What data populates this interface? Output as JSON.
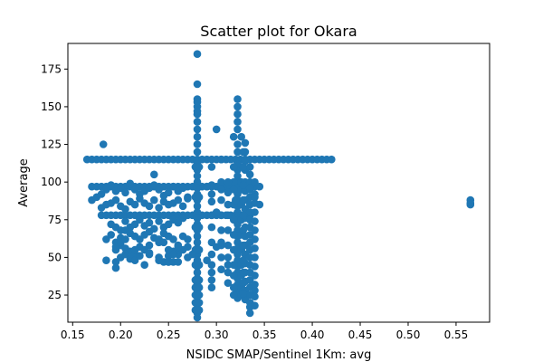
{
  "chart_data": {
    "type": "scatter",
    "title": "Scatter plot for Okara",
    "xlabel": "NSIDC SMAP/Sentinel 1Km: avg",
    "ylabel": "Average",
    "xlim": [
      0.145,
      0.585
    ],
    "ylim": [
      7,
      192
    ],
    "xticks": [
      0.15,
      0.2,
      0.25,
      0.3,
      0.35,
      0.4,
      0.45,
      0.5,
      0.55
    ],
    "xtick_labels": [
      "0.15",
      "0.20",
      "0.25",
      "0.30",
      "0.35",
      "0.40",
      "0.45",
      "0.50",
      "0.55"
    ],
    "yticks": [
      25,
      50,
      75,
      100,
      125,
      150,
      175
    ],
    "ytick_labels": [
      "25",
      "50",
      "75",
      "100",
      "125",
      "150",
      "175"
    ],
    "grid": false,
    "marker_color": "#1f77b4",
    "x": [
      0.165,
      0.17,
      0.175,
      0.18,
      0.185,
      0.19,
      0.195,
      0.2,
      0.205,
      0.21,
      0.215,
      0.22,
      0.225,
      0.23,
      0.235,
      0.24,
      0.245,
      0.25,
      0.255,
      0.26,
      0.265,
      0.27,
      0.275,
      0.28,
      0.285,
      0.29,
      0.295,
      0.3,
      0.305,
      0.31,
      0.315,
      0.32,
      0.325,
      0.33,
      0.335,
      0.34,
      0.345,
      0.35,
      0.355,
      0.36,
      0.365,
      0.37,
      0.375,
      0.38,
      0.385,
      0.39,
      0.395,
      0.4,
      0.405,
      0.41,
      0.415,
      0.42,
      0.17,
      0.175,
      0.18,
      0.185,
      0.19,
      0.195,
      0.2,
      0.205,
      0.21,
      0.215,
      0.22,
      0.225,
      0.23,
      0.235,
      0.24,
      0.245,
      0.25,
      0.255,
      0.26,
      0.265,
      0.27,
      0.275,
      0.28,
      0.285,
      0.29,
      0.295,
      0.3,
      0.305,
      0.31,
      0.315,
      0.32,
      0.325,
      0.33,
      0.335,
      0.34,
      0.345,
      0.18,
      0.185,
      0.19,
      0.195,
      0.2,
      0.205,
      0.21,
      0.215,
      0.22,
      0.225,
      0.23,
      0.235,
      0.24,
      0.245,
      0.25,
      0.255,
      0.26,
      0.265,
      0.27,
      0.275,
      0.28,
      0.285,
      0.29,
      0.295,
      0.3,
      0.305,
      0.31,
      0.315,
      0.32,
      0.325,
      0.33,
      0.335,
      0.28,
      0.28,
      0.28,
      0.28,
      0.28,
      0.28,
      0.28,
      0.28,
      0.28,
      0.28,
      0.28,
      0.28,
      0.28,
      0.28,
      0.28,
      0.28,
      0.28,
      0.28,
      0.28,
      0.28,
      0.28,
      0.28,
      0.28,
      0.28,
      0.28,
      0.28,
      0.28,
      0.28,
      0.28,
      0.28,
      0.28,
      0.28,
      0.28,
      0.28,
      0.28,
      0.28,
      0.28,
      0.28,
      0.28,
      0.278,
      0.282,
      0.278,
      0.282,
      0.278,
      0.282,
      0.278,
      0.282,
      0.278,
      0.282,
      0.278,
      0.282,
      0.278,
      0.282,
      0.278,
      0.282,
      0.278,
      0.282,
      0.278,
      0.282,
      0.322,
      0.322,
      0.322,
      0.322,
      0.322,
      0.322,
      0.322,
      0.322,
      0.322,
      0.322,
      0.322,
      0.322,
      0.322,
      0.322,
      0.322,
      0.322,
      0.322,
      0.322,
      0.322,
      0.322,
      0.322,
      0.322,
      0.322,
      0.322,
      0.322,
      0.322,
      0.322,
      0.322,
      0.322,
      0.322,
      0.322,
      0.318,
      0.326,
      0.318,
      0.326,
      0.318,
      0.326,
      0.318,
      0.326,
      0.318,
      0.326,
      0.318,
      0.326,
      0.318,
      0.326,
      0.318,
      0.326,
      0.318,
      0.326,
      0.318,
      0.326,
      0.318,
      0.326,
      0.318,
      0.326,
      0.33,
      0.33,
      0.33,
      0.33,
      0.33,
      0.33,
      0.33,
      0.33,
      0.33,
      0.33,
      0.33,
      0.33,
      0.33,
      0.33,
      0.33,
      0.33,
      0.33,
      0.33,
      0.33,
      0.33,
      0.335,
      0.335,
      0.335,
      0.335,
      0.335,
      0.335,
      0.335,
      0.335,
      0.335,
      0.335,
      0.335,
      0.335,
      0.335,
      0.335,
      0.335,
      0.335,
      0.335,
      0.335,
      0.335,
      0.335,
      0.335,
      0.335,
      0.34,
      0.34,
      0.34,
      0.34,
      0.34,
      0.34,
      0.34,
      0.34,
      0.34,
      0.34,
      0.34,
      0.34,
      0.34,
      0.34,
      0.34,
      0.295,
      0.295,
      0.295,
      0.295,
      0.295,
      0.295,
      0.295,
      0.295,
      0.295,
      0.295,
      0.295,
      0.295,
      0.305,
      0.305,
      0.305,
      0.305,
      0.305,
      0.305,
      0.305,
      0.305,
      0.305,
      0.305,
      0.312,
      0.312,
      0.312,
      0.312,
      0.312,
      0.312,
      0.312,
      0.312,
      0.312,
      0.312,
      0.328,
      0.328,
      0.328,
      0.328,
      0.328,
      0.328,
      0.328,
      0.328,
      0.328,
      0.328,
      0.328,
      0.328,
      0.345,
      0.17,
      0.175,
      0.18,
      0.185,
      0.19,
      0.195,
      0.2,
      0.205,
      0.21,
      0.215,
      0.22,
      0.225,
      0.23,
      0.235,
      0.24,
      0.245,
      0.25,
      0.255,
      0.26,
      0.265,
      0.27,
      0.18,
      0.185,
      0.19,
      0.195,
      0.2,
      0.205,
      0.21,
      0.215,
      0.22,
      0.225,
      0.23,
      0.235,
      0.24,
      0.245,
      0.25,
      0.255,
      0.26,
      0.265,
      0.27,
      0.19,
      0.195,
      0.2,
      0.205,
      0.21,
      0.215,
      0.22,
      0.225,
      0.23,
      0.235,
      0.24,
      0.245,
      0.25,
      0.255,
      0.26,
      0.265,
      0.185,
      0.19,
      0.195,
      0.2,
      0.205,
      0.21,
      0.215,
      0.22,
      0.225,
      0.23,
      0.235,
      0.24,
      0.245,
      0.25,
      0.255,
      0.26,
      0.265,
      0.27,
      0.195,
      0.2,
      0.205,
      0.21,
      0.215,
      0.22,
      0.225,
      0.23,
      0.24,
      0.25,
      0.255,
      0.26,
      0.265,
      0.27,
      0.185,
      0.195,
      0.2,
      0.205,
      0.21,
      0.215,
      0.22,
      0.23,
      0.24,
      0.245,
      0.25,
      0.255,
      0.26,
      0.27,
      0.195,
      0.2,
      0.205,
      0.215,
      0.23,
      0.24,
      0.245,
      0.25,
      0.255,
      0.26,
      0.225,
      0.275,
      0.29,
      0.3,
      0.195,
      0.25,
      0.255,
      0.26,
      0.235,
      0.182,
      0.3,
      0.32,
      0.34,
      0.3,
      0.29,
      0.565,
      0.565,
      0.565
    ],
    "y": [
      115,
      115,
      115,
      115,
      115,
      115,
      115,
      115,
      115,
      115,
      115,
      115,
      115,
      115,
      115,
      115,
      115,
      115,
      115,
      115,
      115,
      115,
      115,
      115,
      115,
      115,
      115,
      115,
      115,
      115,
      115,
      115,
      115,
      115,
      115,
      115,
      115,
      115,
      115,
      115,
      115,
      115,
      115,
      115,
      115,
      115,
      115,
      115,
      115,
      115,
      115,
      115,
      97,
      97,
      97,
      97,
      97,
      97,
      97,
      97,
      97,
      97,
      97,
      97,
      97,
      97,
      97,
      97,
      97,
      97,
      97,
      97,
      97,
      97,
      97,
      97,
      97,
      97,
      97,
      97,
      97,
      97,
      97,
      97,
      97,
      97,
      97,
      97,
      78,
      78,
      78,
      78,
      78,
      78,
      78,
      78,
      78,
      78,
      78,
      78,
      78,
      78,
      78,
      78,
      78,
      78,
      78,
      78,
      78,
      78,
      78,
      78,
      78,
      78,
      78,
      78,
      78,
      78,
      78,
      78,
      185,
      165,
      155,
      150,
      145,
      140,
      135,
      130,
      125,
      120,
      112,
      108,
      104,
      100,
      96,
      92,
      88,
      84,
      80,
      76,
      72,
      68,
      64,
      60,
      56,
      52,
      48,
      44,
      40,
      36,
      32,
      28,
      24,
      20,
      16,
      13,
      10,
      147,
      153,
      110,
      110,
      90,
      90,
      70,
      70,
      55,
      55,
      45,
      45,
      35,
      35,
      30,
      30,
      25,
      25,
      20,
      20,
      15,
      15,
      155,
      145,
      140,
      135,
      125,
      120,
      112,
      108,
      104,
      100,
      96,
      92,
      88,
      84,
      80,
      76,
      72,
      68,
      64,
      60,
      56,
      52,
      48,
      44,
      40,
      36,
      32,
      28,
      25,
      23,
      150,
      130,
      130,
      110,
      110,
      95,
      95,
      85,
      85,
      75,
      75,
      65,
      65,
      55,
      55,
      45,
      45,
      38,
      38,
      30,
      30,
      25,
      25,
      100,
      100,
      108,
      100,
      94,
      88,
      82,
      76,
      70,
      64,
      58,
      52,
      46,
      40,
      34,
      28,
      24,
      114,
      120,
      126,
      115,
      22,
      105,
      100,
      95,
      90,
      85,
      80,
      75,
      70,
      65,
      60,
      55,
      50,
      45,
      40,
      35,
      30,
      25,
      20,
      17,
      13,
      110,
      96,
      100,
      92,
      86,
      80,
      74,
      68,
      62,
      56,
      50,
      44,
      38,
      32,
      28,
      24,
      18,
      110,
      98,
      92,
      87,
      78,
      70,
      60,
      52,
      45,
      40,
      35,
      30,
      100,
      95,
      88,
      78,
      68,
      58,
      50,
      60,
      42,
      115,
      100,
      93,
      85,
      78,
      68,
      58,
      50,
      45,
      40,
      33,
      120,
      110,
      98,
      88,
      78,
      68,
      58,
      48,
      40,
      33,
      28,
      26,
      85,
      88,
      90,
      92,
      95,
      98,
      94,
      96,
      93,
      99,
      95,
      92,
      94,
      96,
      98,
      95,
      91,
      93,
      97,
      94,
      96,
      90,
      83,
      85,
      86,
      88,
      84,
      82,
      87,
      85,
      89,
      86,
      84,
      88,
      83,
      87,
      85,
      86,
      88,
      84,
      89,
      72,
      70,
      68,
      74,
      70,
      72,
      75,
      71,
      73,
      69,
      74,
      70,
      72,
      75,
      73,
      76,
      62,
      65,
      60,
      63,
      68,
      66,
      64,
      62,
      65,
      67,
      63,
      60,
      66,
      64,
      62,
      58,
      64,
      62,
      55,
      58,
      56,
      54,
      52,
      57,
      55,
      53,
      50,
      51,
      54,
      52,
      55,
      57,
      48,
      47,
      50,
      52,
      49,
      48,
      51,
      52,
      48,
      47,
      47,
      53,
      55,
      50,
      57,
      60,
      62,
      55,
      58,
      62,
      60,
      55,
      52,
      57,
      45,
      52,
      48,
      57,
      43,
      47,
      47,
      47,
      105,
      125,
      135,
      88,
      90,
      80,
      97,
      88,
      86,
      85
    ]
  }
}
